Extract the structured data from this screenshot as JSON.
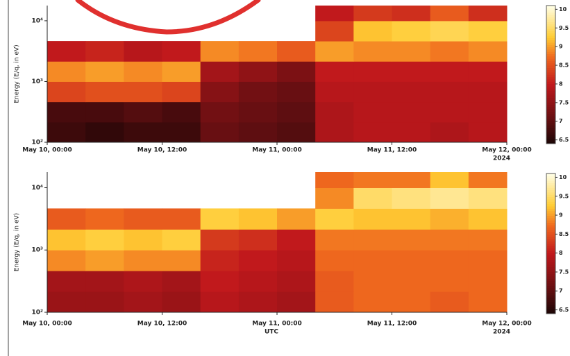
{
  "chart_data": [
    {
      "type": "heatmap",
      "ylabel": "Energy (E/q, in eV)",
      "log_y": true,
      "colormap": "hot",
      "x_offset_label": "2024",
      "xlim": [
        "2024-05-10T00:00",
        "2024-05-12T00:00"
      ],
      "xticks": [
        {
          "value": "2024-05-10T00:00",
          "label": "May 10, 00:00"
        },
        {
          "value": "2024-05-10T12:00",
          "label": "May 10, 12:00"
        },
        {
          "value": "2024-05-11T00:00",
          "label": "May 11, 00:00"
        },
        {
          "value": "2024-05-11T12:00",
          "label": "May 11, 12:00"
        },
        {
          "value": "2024-05-12T00:00",
          "label": "May 12, 00:00"
        }
      ],
      "ylim": [
        100,
        17800
      ],
      "yticks": [
        {
          "value": 100,
          "label": "10²"
        },
        {
          "value": 1000,
          "label": "10³"
        },
        {
          "value": 10000,
          "label": "10⁴"
        }
      ],
      "clim": [
        6.4,
        10.1
      ],
      "cticks": [
        6.5,
        7,
        7.5,
        8,
        8.5,
        9,
        9.5,
        10
      ],
      "x_edges": [
        "2024-05-10T00:00",
        "2024-05-10T04:00",
        "2024-05-10T08:00",
        "2024-05-10T12:00",
        "2024-05-10T16:00",
        "2024-05-10T20:00",
        "2024-05-11T00:00",
        "2024-05-11T04:00",
        "2024-05-11T08:00",
        "2024-05-11T12:00",
        "2024-05-11T16:00",
        "2024-05-11T20:00",
        "2024-05-12T00:00"
      ],
      "y_edges": [
        100,
        215,
        464,
        1000,
        2154,
        4642,
        10000,
        17800
      ],
      "values": [
        [
          6.7,
          6.6,
          6.7,
          6.7,
          7.1,
          7.0,
          6.9,
          7.8,
          7.9,
          7.9,
          7.8,
          7.9
        ],
        [
          6.8,
          6.8,
          6.9,
          6.8,
          7.2,
          7.1,
          7.0,
          7.8,
          7.9,
          7.9,
          7.9,
          7.9
        ],
        [
          8.4,
          8.5,
          8.5,
          8.4,
          7.4,
          7.2,
          7.1,
          7.9,
          7.9,
          7.9,
          7.9,
          7.9
        ],
        [
          8.9,
          9.0,
          8.9,
          9.0,
          7.7,
          7.5,
          7.3,
          8.0,
          8.0,
          8.0,
          8.0,
          8.0
        ],
        [
          8.0,
          8.1,
          7.9,
          8.0,
          8.9,
          8.8,
          8.6,
          9.0,
          8.9,
          8.9,
          8.8,
          8.9
        ],
        [
          null,
          null,
          null,
          null,
          null,
          null,
          null,
          8.4,
          9.2,
          9.3,
          9.4,
          9.3
        ],
        [
          null,
          null,
          null,
          null,
          null,
          null,
          null,
          8.0,
          8.3,
          8.2,
          8.6,
          8.2
        ]
      ]
    },
    {
      "type": "heatmap",
      "ylabel": "Energy (E/q, in eV)",
      "xlabel": "UTC",
      "log_y": true,
      "colormap": "hot",
      "x_offset_label": "2024",
      "xlim": [
        "2024-05-10T00:00",
        "2024-05-12T00:00"
      ],
      "xticks": [
        {
          "value": "2024-05-10T00:00",
          "label": "May 10, 00:00"
        },
        {
          "value": "2024-05-10T12:00",
          "label": "May 10, 12:00"
        },
        {
          "value": "2024-05-11T00:00",
          "label": "May 11, 00:00"
        },
        {
          "value": "2024-05-11T12:00",
          "label": "May 11, 12:00"
        },
        {
          "value": "2024-05-12T00:00",
          "label": "May 12, 00:00"
        }
      ],
      "ylim": [
        100,
        17800
      ],
      "yticks": [
        {
          "value": 100,
          "label": "10²"
        },
        {
          "value": 1000,
          "label": "10³"
        },
        {
          "value": 10000,
          "label": "10⁴"
        }
      ],
      "clim": [
        6.4,
        10.1
      ],
      "cticks": [
        6.5,
        7,
        7.5,
        8,
        8.5,
        9,
        9.5,
        10
      ],
      "x_edges": [
        "2024-05-10T00:00",
        "2024-05-10T04:00",
        "2024-05-10T08:00",
        "2024-05-10T12:00",
        "2024-05-10T16:00",
        "2024-05-10T20:00",
        "2024-05-11T00:00",
        "2024-05-11T04:00",
        "2024-05-11T08:00",
        "2024-05-11T12:00",
        "2024-05-11T16:00",
        "2024-05-11T20:00",
        "2024-05-12T00:00"
      ],
      "y_edges": [
        100,
        215,
        464,
        1000,
        2154,
        4642,
        10000,
        17800
      ],
      "values": [
        [
          7.6,
          7.6,
          7.7,
          7.6,
          7.9,
          7.8,
          7.7,
          8.6,
          8.7,
          8.7,
          8.6,
          8.7
        ],
        [
          7.7,
          7.7,
          7.8,
          7.7,
          8.0,
          7.9,
          7.8,
          8.6,
          8.7,
          8.7,
          8.7,
          8.7
        ],
        [
          8.9,
          9.0,
          8.9,
          8.9,
          8.1,
          8.0,
          7.9,
          8.7,
          8.7,
          8.7,
          8.7,
          8.7
        ],
        [
          9.2,
          9.3,
          9.2,
          9.3,
          8.3,
          8.2,
          8.0,
          8.8,
          8.8,
          8.8,
          8.8,
          8.8
        ],
        [
          8.6,
          8.7,
          8.6,
          8.6,
          9.3,
          9.2,
          9.0,
          9.3,
          9.2,
          9.2,
          9.1,
          9.2
        ],
        [
          null,
          null,
          null,
          null,
          null,
          null,
          null,
          8.9,
          9.5,
          9.6,
          9.7,
          9.6
        ],
        [
          null,
          null,
          null,
          null,
          null,
          null,
          null,
          8.7,
          8.8,
          8.8,
          9.2,
          8.8
        ]
      ]
    }
  ]
}
